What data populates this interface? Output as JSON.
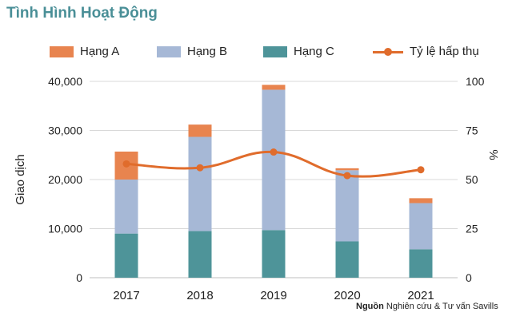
{
  "title": "Tình Hình Hoạt Động",
  "source": {
    "label": "Nguồn",
    "text": "Nghiên cứu & Tư vấn Savills"
  },
  "colors": {
    "hang_a": "#e8844f",
    "hang_b": "#a6b8d6",
    "hang_c": "#4e9499",
    "line": "#e06c2c",
    "title": "#4a8f97"
  },
  "chart_data": {
    "type": "bar",
    "stacked": true,
    "categories": [
      "2017",
      "2018",
      "2019",
      "2020",
      "2021"
    ],
    "series": [
      {
        "name": "Hạng C",
        "type": "bar",
        "axis": "left",
        "values": [
          9000,
          9500,
          9700,
          7400,
          5800
        ]
      },
      {
        "name": "Hạng B",
        "type": "bar",
        "axis": "left",
        "values": [
          11000,
          19200,
          28600,
          14500,
          9400
        ]
      },
      {
        "name": "Hạng A",
        "type": "bar",
        "axis": "left",
        "values": [
          5700,
          2500,
          1000,
          400,
          1000
        ]
      },
      {
        "name": "Tỷ lệ hấp thụ",
        "type": "line",
        "axis": "right",
        "values": [
          58,
          56,
          64,
          52,
          55
        ]
      }
    ],
    "legend_order": [
      "Hạng A",
      "Hạng B",
      "Hạng C",
      "Tỷ lệ hấp thụ"
    ],
    "ylabel": "Giao dịch",
    "y2label": "%",
    "ylim": [
      0,
      40000
    ],
    "y2lim": [
      0,
      100
    ],
    "yticks": [
      "0",
      "10,000",
      "20,000",
      "30,000",
      "40,000"
    ],
    "y2ticks": [
      "0",
      "25",
      "50",
      "75",
      "100"
    ],
    "grid": true,
    "legend_position": "top"
  }
}
